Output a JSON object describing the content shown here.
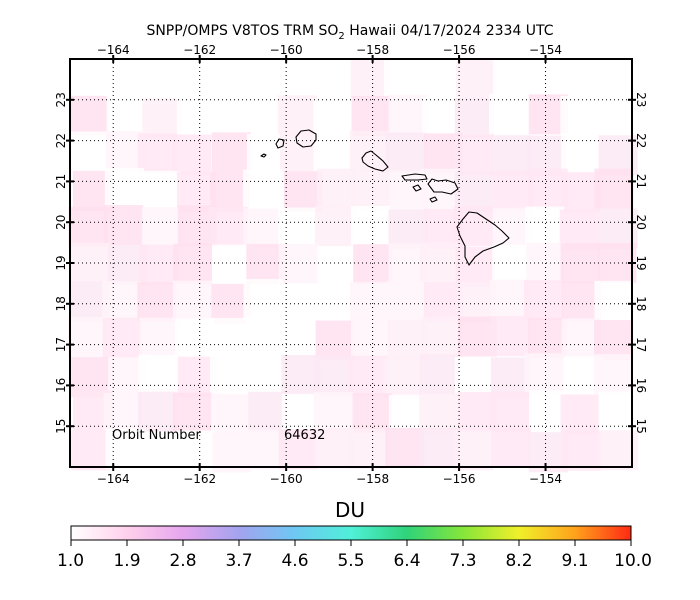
{
  "title": {
    "prefix": "SNPP/OMPS V8TOS TRM SO",
    "subscript": "2",
    "suffix": " Hawaii 04/17/2024 2334 UTC"
  },
  "map": {
    "lon_range": [
      -165,
      -152
    ],
    "lat_range": [
      14,
      24
    ],
    "lon_ticks": [
      -164,
      -162,
      -160,
      -158,
      -156,
      -154
    ],
    "lon_tick_labels": [
      "−164",
      "−162",
      "−160",
      "−158",
      "−156",
      "−154"
    ],
    "lat_ticks": [
      15,
      16,
      17,
      18,
      19,
      20,
      21,
      22,
      23
    ],
    "lat_tick_labels": [
      "15",
      "16",
      "17",
      "18",
      "19",
      "20",
      "21",
      "22",
      "23"
    ],
    "grid": "dotted",
    "coastline_color": "#000000"
  },
  "orbit": {
    "label": "Orbit Number",
    "value": "64632"
  },
  "colorbar": {
    "unit": "DU",
    "labels": [
      "1.0",
      "1.9",
      "2.8",
      "3.7",
      "4.6",
      "5.5",
      "6.4",
      "7.3",
      "8.2",
      "9.1",
      "10.0"
    ],
    "min": 1.0,
    "max": 10.0,
    "colors": [
      "#ffffff",
      "#ffd0ec",
      "#e6a6ee",
      "#a3a3ee",
      "#6ec8f2",
      "#4ff0d8",
      "#2fd37a",
      "#86e63a",
      "#f0f02a",
      "#ffa21c",
      "#ff2a14"
    ]
  }
}
